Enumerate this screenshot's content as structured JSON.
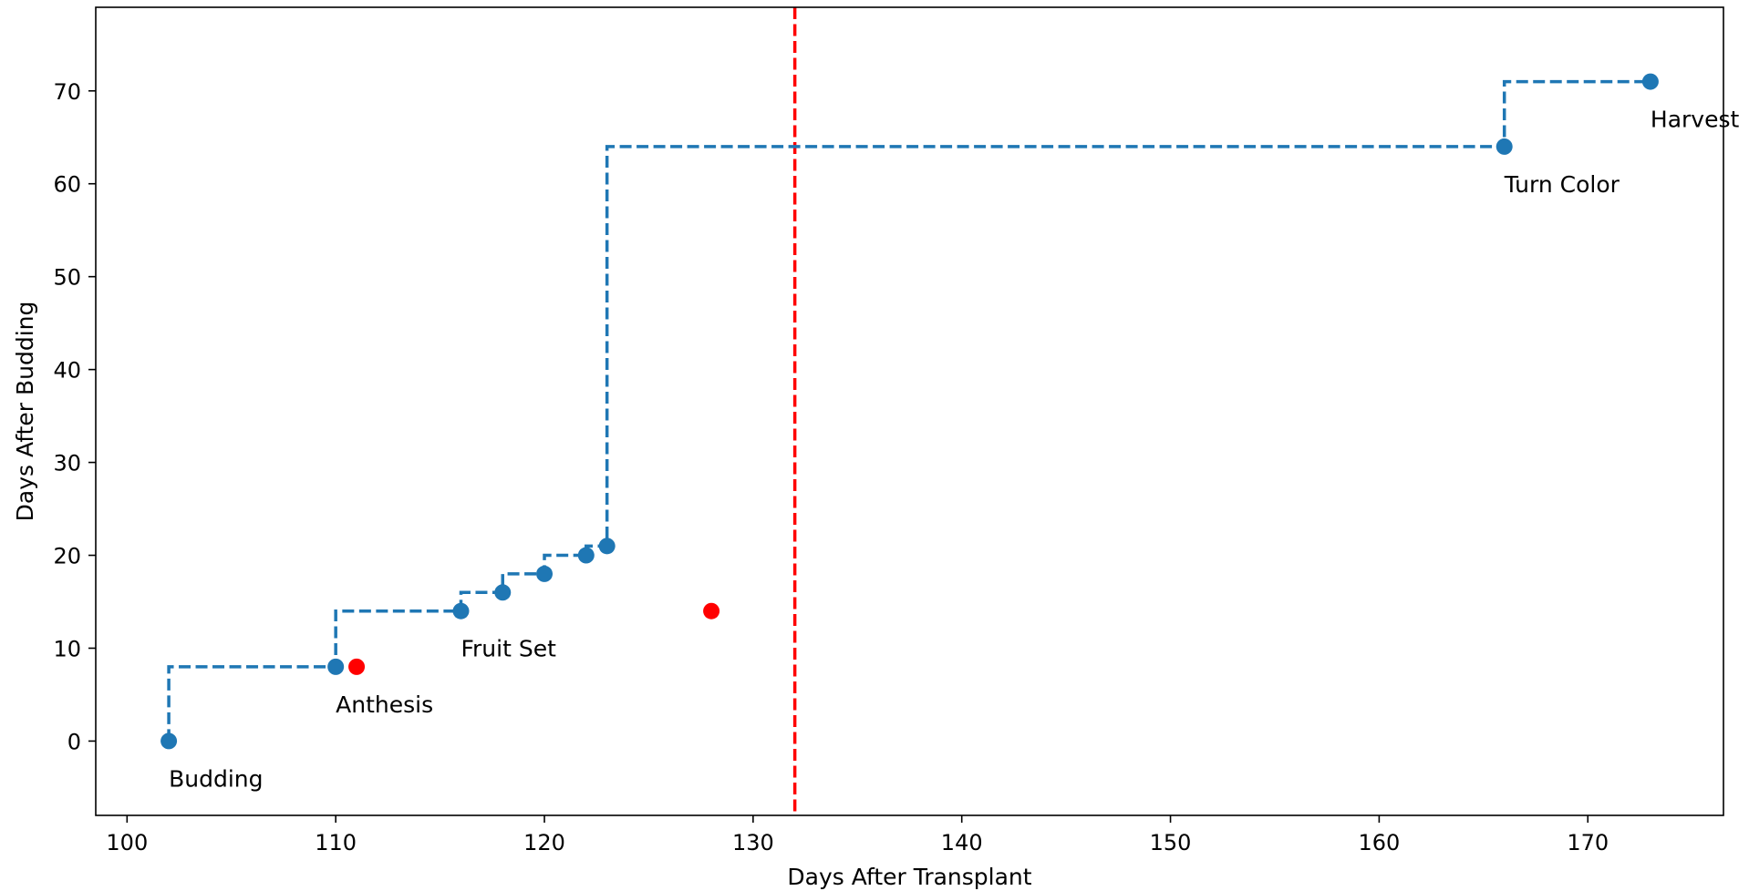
{
  "chart_data": {
    "type": "line",
    "xlabel": "Days After Transplant",
    "ylabel": "Days After Budding",
    "xlim": [
      98.5,
      176.5
    ],
    "ylim": [
      -8,
      79
    ],
    "x_ticks": [
      100,
      110,
      120,
      130,
      140,
      150,
      160,
      170
    ],
    "y_ticks": [
      0,
      10,
      20,
      30,
      40,
      50,
      60,
      70
    ],
    "grid": false,
    "legend": "none",
    "series": [
      {
        "style": "steps-post, dashed, with markers",
        "color": "#1f77b4",
        "points": [
          {
            "x": 102,
            "y": 0,
            "label": "Budding"
          },
          {
            "x": 110,
            "y": 8,
            "label": "Anthesis"
          },
          {
            "x": 116,
            "y": 14,
            "label": "Fruit Set"
          },
          {
            "x": 118,
            "y": 16,
            "label": ""
          },
          {
            "x": 120,
            "y": 18,
            "label": ""
          },
          {
            "x": 122,
            "y": 20,
            "label": ""
          },
          {
            "x": 123,
            "y": 21,
            "label": ""
          },
          {
            "x": 166,
            "y": 64,
            "label": "Turn Color"
          },
          {
            "x": 173,
            "y": 71,
            "label": "Harvest"
          }
        ]
      },
      {
        "style": "markers",
        "color": "#ff0000",
        "points": [
          {
            "x": 111,
            "y": 8
          },
          {
            "x": 128,
            "y": 14
          }
        ]
      }
    ],
    "reference_lines": [
      {
        "orientation": "vertical",
        "x": 132,
        "color": "#ff0000",
        "style": "dashed"
      }
    ]
  }
}
